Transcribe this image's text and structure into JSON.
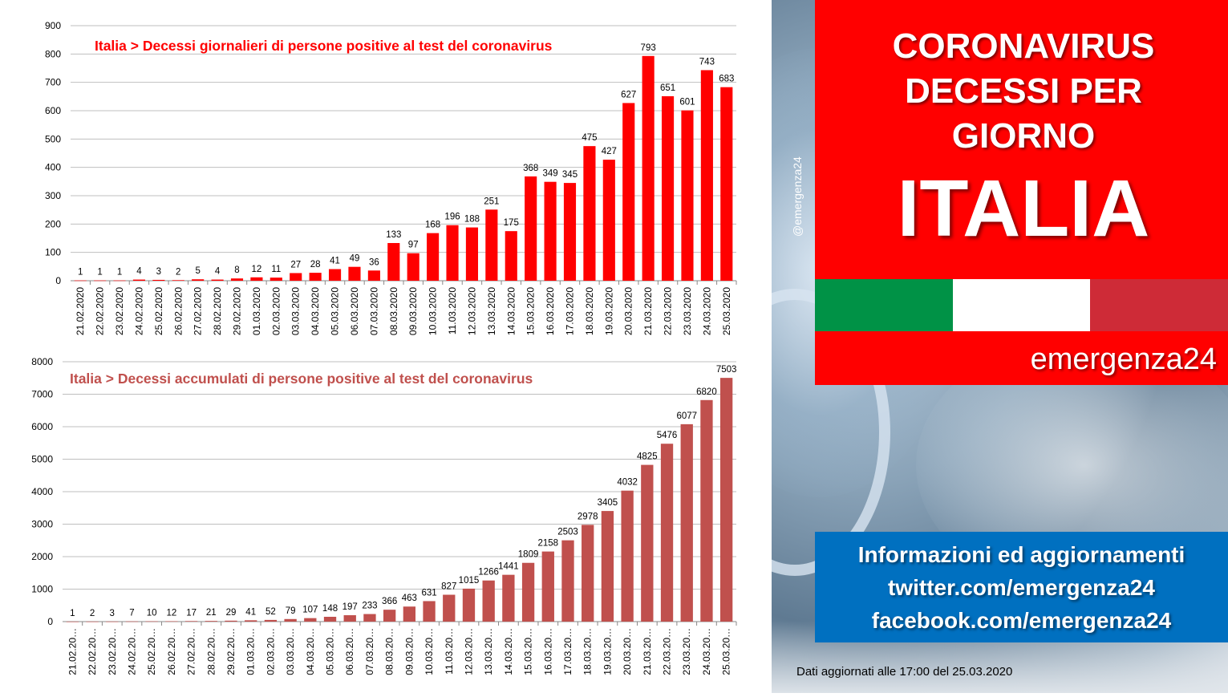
{
  "colors": {
    "daily_bar": "#ff0000",
    "cumulative_bar": "#c0504d",
    "header_red": "#ff0000",
    "info_blue": "#0070c0",
    "flag": [
      "#009246",
      "#ffffff",
      "#ce2b37"
    ]
  },
  "watermark": "@emergenza24",
  "header": {
    "lines": [
      "CORONAVIRUS",
      "DECESSI PER",
      "GIORNO"
    ],
    "country": "ITALIA",
    "brand": "emergenza24"
  },
  "info": {
    "lines": [
      "Informazioni ed aggiornamenti",
      "twitter.com/emergenza24",
      "facebook.com/emergenza24"
    ]
  },
  "footnote": "Dati aggiornati alle 17:00 del 25.03.2020",
  "chart_data": [
    {
      "type": "bar",
      "title": "Italia > Decessi giornalieri di persone positive al test del coronavirus",
      "categories": [
        "21.02.2020",
        "22.02.2020",
        "23.02.2020",
        "24.02.2020",
        "25.02.2020",
        "26.02.2020",
        "27.02.2020",
        "28.02.2020",
        "29.02.2020",
        "01.03.2020",
        "02.03.2020",
        "03.03.2020",
        "04.03.2020",
        "05.03.2020",
        "06.03.2020",
        "07.03.2020",
        "08.03.2020",
        "09.03.2020",
        "10.03.2020",
        "11.03.2020",
        "12.03.2020",
        "13.03.2020",
        "14.03.2020",
        "15.03.2020",
        "16.03.2020",
        "17.03.2020",
        "18.03.2020",
        "19.03.2020",
        "20.03.2020",
        "21.03.2020",
        "22.03.2020",
        "23.03.2020",
        "24.03.2020",
        "25.03.2020"
      ],
      "values": [
        1,
        1,
        1,
        4,
        3,
        2,
        5,
        4,
        8,
        12,
        11,
        27,
        28,
        41,
        49,
        36,
        133,
        97,
        168,
        196,
        188,
        251,
        175,
        368,
        349,
        345,
        475,
        427,
        627,
        793,
        651,
        601,
        743,
        683
      ],
      "ylim": [
        0,
        900
      ],
      "yticks": [
        0,
        100,
        200,
        300,
        400,
        500,
        600,
        700,
        800,
        900
      ],
      "grid": true
    },
    {
      "type": "bar",
      "title": "Italia > Decessi accumulati di persone positive al test del coronavirus",
      "categories": [
        "21.02.20…",
        "22.02.20…",
        "23.02.20…",
        "24.02.20…",
        "25.02.20…",
        "26.02.20…",
        "27.02.20…",
        "28.02.20…",
        "29.02.20…",
        "01.03.20…",
        "02.03.20…",
        "03.03.20…",
        "04.03.20…",
        "05.03.20…",
        "06.03.20…",
        "07.03.20…",
        "08.03.20…",
        "09.03.20…",
        "10.03.20…",
        "11.03.20…",
        "12.03.20…",
        "13.03.20…",
        "14.03.20…",
        "15.03.20…",
        "16.03.20…",
        "17.03.20…",
        "18.03.20…",
        "19.03.20…",
        "20.03.20…",
        "21.03.20…",
        "22.03.20…",
        "23.03.20…",
        "24.03.20…",
        "25.03.20…"
      ],
      "values": [
        1,
        2,
        3,
        7,
        10,
        12,
        17,
        21,
        29,
        41,
        52,
        79,
        107,
        148,
        197,
        233,
        366,
        463,
        631,
        827,
        1015,
        1266,
        1441,
        1809,
        2158,
        2503,
        2978,
        3405,
        4032,
        4825,
        5476,
        6077,
        6820,
        7503
      ],
      "ylim": [
        0,
        8000
      ],
      "yticks": [
        0,
        1000,
        2000,
        3000,
        4000,
        5000,
        6000,
        7000,
        8000
      ],
      "grid": true
    }
  ]
}
